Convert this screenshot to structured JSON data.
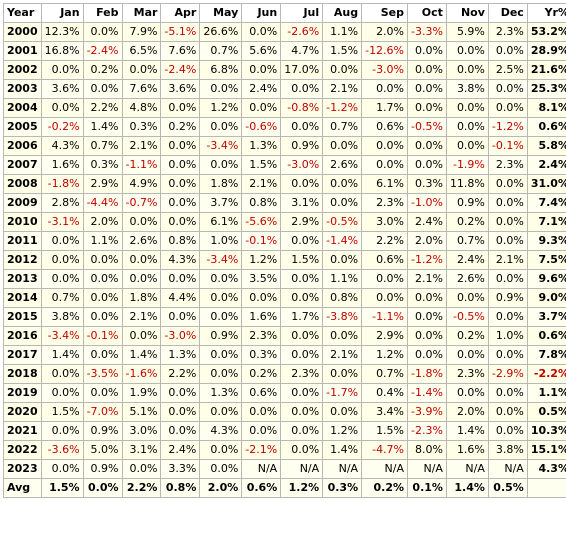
{
  "header": [
    "Year",
    "Jan",
    "Feb",
    "Mar",
    "Apr",
    "May",
    "Jun",
    "Jul",
    "Aug",
    "Sep",
    "Oct",
    "Nov",
    "Dec",
    "Yr%"
  ],
  "rows": [
    {
      "year": "2000",
      "months": [
        "12.3%",
        "0.0%",
        "7.9%",
        "-5.1%",
        "26.6%",
        "0.0%",
        "-2.6%",
        "1.1%",
        "2.0%",
        "-3.3%",
        "5.9%",
        "2.3%"
      ],
      "total": "53.2%"
    },
    {
      "year": "2001",
      "months": [
        "16.8%",
        "-2.4%",
        "6.5%",
        "7.6%",
        "0.7%",
        "5.6%",
        "4.7%",
        "1.5%",
        "-12.6%",
        "0.0%",
        "0.0%",
        "0.0%"
      ],
      "total": "28.9%"
    },
    {
      "year": "2002",
      "months": [
        "0.0%",
        "0.2%",
        "0.0%",
        "-2.4%",
        "6.8%",
        "0.0%",
        "17.0%",
        "0.0%",
        "-3.0%",
        "0.0%",
        "0.0%",
        "2.5%"
      ],
      "total": "21.6%"
    },
    {
      "year": "2003",
      "months": [
        "3.6%",
        "0.0%",
        "7.6%",
        "3.6%",
        "0.0%",
        "2.4%",
        "0.0%",
        "2.1%",
        "0.0%",
        "0.0%",
        "3.8%",
        "0.0%"
      ],
      "total": "25.3%"
    },
    {
      "year": "2004",
      "months": [
        "0.0%",
        "2.2%",
        "4.8%",
        "0.0%",
        "1.2%",
        "0.0%",
        "-0.8%",
        "-1.2%",
        "1.7%",
        "0.0%",
        "0.0%",
        "0.0%"
      ],
      "total": "8.1%"
    },
    {
      "year": "2005",
      "months": [
        "-0.2%",
        "1.4%",
        "0.3%",
        "0.2%",
        "0.0%",
        "-0.6%",
        "0.0%",
        "0.7%",
        "0.6%",
        "-0.5%",
        "0.0%",
        "-1.2%"
      ],
      "total": "0.6%"
    },
    {
      "year": "2006",
      "months": [
        "4.3%",
        "0.7%",
        "2.1%",
        "0.0%",
        "-3.4%",
        "1.3%",
        "0.9%",
        "0.0%",
        "0.0%",
        "0.0%",
        "0.0%",
        "-0.1%"
      ],
      "total": "5.8%"
    },
    {
      "year": "2007",
      "months": [
        "1.6%",
        "0.3%",
        "-1.1%",
        "0.0%",
        "0.0%",
        "1.5%",
        "-3.0%",
        "2.6%",
        "0.0%",
        "0.0%",
        "-1.9%",
        "2.3%"
      ],
      "total": "2.4%"
    },
    {
      "year": "2008",
      "months": [
        "-1.8%",
        "2.9%",
        "4.9%",
        "0.0%",
        "1.8%",
        "2.1%",
        "0.0%",
        "0.0%",
        "6.1%",
        "0.3%",
        "11.8%",
        "0.0%"
      ],
      "total": "31.0%"
    },
    {
      "year": "2009",
      "months": [
        "2.8%",
        "-4.4%",
        "-0.7%",
        "0.0%",
        "3.7%",
        "0.8%",
        "3.1%",
        "0.0%",
        "2.3%",
        "-1.0%",
        "0.9%",
        "0.0%"
      ],
      "total": "7.4%"
    },
    {
      "year": "2010",
      "months": [
        "-3.1%",
        "2.0%",
        "0.0%",
        "0.0%",
        "6.1%",
        "-5.6%",
        "2.9%",
        "-0.5%",
        "3.0%",
        "2.4%",
        "0.2%",
        "0.0%"
      ],
      "total": "7.1%"
    },
    {
      "year": "2011",
      "months": [
        "0.0%",
        "1.1%",
        "2.6%",
        "0.8%",
        "1.0%",
        "-0.1%",
        "0.0%",
        "-1.4%",
        "2.2%",
        "2.0%",
        "0.7%",
        "0.0%"
      ],
      "total": "9.3%"
    },
    {
      "year": "2012",
      "months": [
        "0.0%",
        "0.0%",
        "0.0%",
        "4.3%",
        "-3.4%",
        "1.2%",
        "1.5%",
        "0.0%",
        "0.6%",
        "-1.2%",
        "2.4%",
        "2.1%"
      ],
      "total": "7.5%"
    },
    {
      "year": "2013",
      "months": [
        "0.0%",
        "0.0%",
        "0.0%",
        "0.0%",
        "0.0%",
        "3.5%",
        "0.0%",
        "1.1%",
        "0.0%",
        "2.1%",
        "2.6%",
        "0.0%"
      ],
      "total": "9.6%"
    },
    {
      "year": "2014",
      "months": [
        "0.7%",
        "0.0%",
        "1.8%",
        "4.4%",
        "0.0%",
        "0.0%",
        "0.0%",
        "0.8%",
        "0.0%",
        "0.0%",
        "0.0%",
        "0.9%"
      ],
      "total": "9.0%"
    },
    {
      "year": "2015",
      "months": [
        "3.8%",
        "0.0%",
        "2.1%",
        "0.0%",
        "0.0%",
        "1.6%",
        "1.7%",
        "-3.8%",
        "-1.1%",
        "0.0%",
        "-0.5%",
        "0.0%"
      ],
      "total": "3.7%"
    },
    {
      "year": "2016",
      "months": [
        "-3.4%",
        "-0.1%",
        "0.0%",
        "-3.0%",
        "0.9%",
        "2.3%",
        "0.0%",
        "0.0%",
        "2.9%",
        "0.0%",
        "0.2%",
        "1.0%"
      ],
      "total": "0.6%"
    },
    {
      "year": "2017",
      "months": [
        "1.4%",
        "0.0%",
        "1.4%",
        "1.3%",
        "0.0%",
        "0.3%",
        "0.0%",
        "2.1%",
        "1.2%",
        "0.0%",
        "0.0%",
        "0.0%"
      ],
      "total": "7.8%"
    },
    {
      "year": "2018",
      "months": [
        "0.0%",
        "-3.5%",
        "-1.6%",
        "2.2%",
        "0.0%",
        "0.2%",
        "2.3%",
        "0.0%",
        "0.7%",
        "-1.8%",
        "2.3%",
        "-2.9%"
      ],
      "total": "-2.2%"
    },
    {
      "year": "2019",
      "months": [
        "0.0%",
        "0.0%",
        "1.9%",
        "0.0%",
        "1.3%",
        "0.6%",
        "0.0%",
        "-1.7%",
        "0.4%",
        "-1.4%",
        "0.0%",
        "0.0%"
      ],
      "total": "1.1%"
    },
    {
      "year": "2020",
      "months": [
        "1.5%",
        "-7.0%",
        "5.1%",
        "0.0%",
        "0.0%",
        "0.0%",
        "0.0%",
        "0.0%",
        "3.4%",
        "-3.9%",
        "2.0%",
        "0.0%"
      ],
      "total": "0.5%"
    },
    {
      "year": "2021",
      "months": [
        "0.0%",
        "0.9%",
        "3.0%",
        "0.0%",
        "4.3%",
        "0.0%",
        "0.0%",
        "1.2%",
        "1.5%",
        "-2.3%",
        "1.4%",
        "0.0%"
      ],
      "total": "10.3%"
    },
    {
      "year": "2022",
      "months": [
        "-3.6%",
        "5.0%",
        "3.1%",
        "2.4%",
        "0.0%",
        "-2.1%",
        "0.0%",
        "1.4%",
        "-4.7%",
        "8.0%",
        "1.6%",
        "3.8%"
      ],
      "total": "15.1%"
    },
    {
      "year": "2023",
      "months": [
        "0.0%",
        "0.9%",
        "0.0%",
        "3.3%",
        "0.0%",
        "N/A",
        "N/A",
        "N/A",
        "N/A",
        "N/A",
        "N/A",
        "N/A"
      ],
      "total": "4.3%"
    }
  ],
  "avg": {
    "label": "Avg",
    "months": [
      "1.5%",
      "0.0%",
      "2.2%",
      "0.8%",
      "2.0%",
      "0.6%",
      "1.2%",
      "0.3%",
      "0.2%",
      "0.1%",
      "1.4%",
      "0.5%"
    ],
    "total": ""
  }
}
